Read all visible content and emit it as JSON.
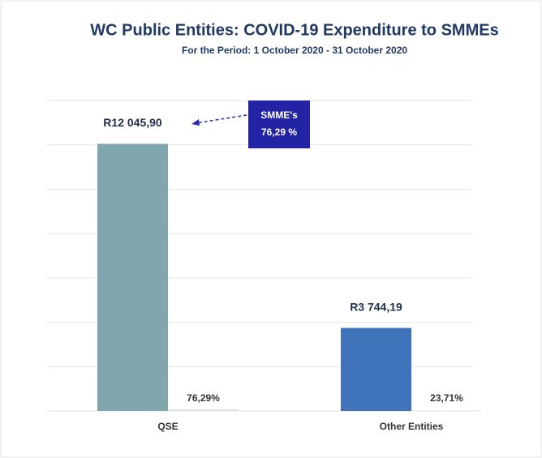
{
  "chart_data": {
    "type": "bar",
    "title": "WC Public Entities: COVID-19 Expenditure to SMMEs",
    "subtitle": "For the Period: 1 October 2020 - 31 October 2020",
    "categories": [
      "QSE",
      "Other Entities"
    ],
    "series": [
      {
        "values": [
          12045.9,
          3744.19
        ],
        "value_labels": [
          "R12 045,90",
          "R3 744,19"
        ],
        "colors": [
          "#7fa7ad",
          "#3f74ba"
        ]
      },
      {
        "values": [
          76.29,
          23.71
        ],
        "value_labels": [
          "76,29%",
          "23,71%"
        ],
        "color": "#e4e4e4"
      }
    ],
    "annotation": [
      "SMME's",
      "76,29 %"
    ],
    "ylim": [
      0,
      14000
    ],
    "yticks": [
      0,
      2000,
      4000,
      6000,
      8000,
      10000,
      12000,
      14000
    ],
    "grid": true
  }
}
